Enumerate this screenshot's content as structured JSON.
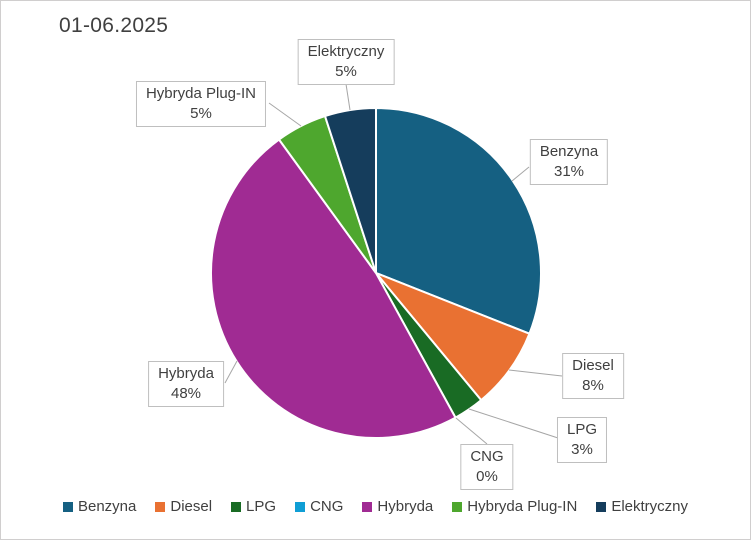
{
  "title": "01-06.2025",
  "chart_data": {
    "type": "pie",
    "title": "01-06.2025",
    "categories": [
      "Benzyna",
      "Diesel",
      "LPG",
      "CNG",
      "Hybryda",
      "Hybryda Plug-IN",
      "Elektryczny"
    ],
    "values": [
      31,
      8,
      3,
      0,
      48,
      5,
      5
    ],
    "unit": "percent",
    "colors": [
      "#156082",
      "#E97132",
      "#196B24",
      "#0F9ED5",
      "#A02B93",
      "#4EA72E",
      "#153D5C"
    ],
    "start_angle_deg": 0,
    "direction": "clockwise",
    "legend_position": "bottom",
    "data_label_style": "callout boxes with category name and percent"
  },
  "callouts": {
    "benzyna": {
      "name": "Benzyna",
      "value": "31%"
    },
    "diesel": {
      "name": "Diesel",
      "value": "8%"
    },
    "lpg": {
      "name": "LPG",
      "value": "3%"
    },
    "cng": {
      "name": "CNG",
      "value": "0%"
    },
    "hybryda": {
      "name": "Hybryda",
      "value": "48%"
    },
    "hybryda_plug_in": {
      "name": "Hybryda Plug-IN",
      "value": "5%"
    },
    "elektryczny": {
      "name": "Elektryczny",
      "value": "5%"
    }
  }
}
